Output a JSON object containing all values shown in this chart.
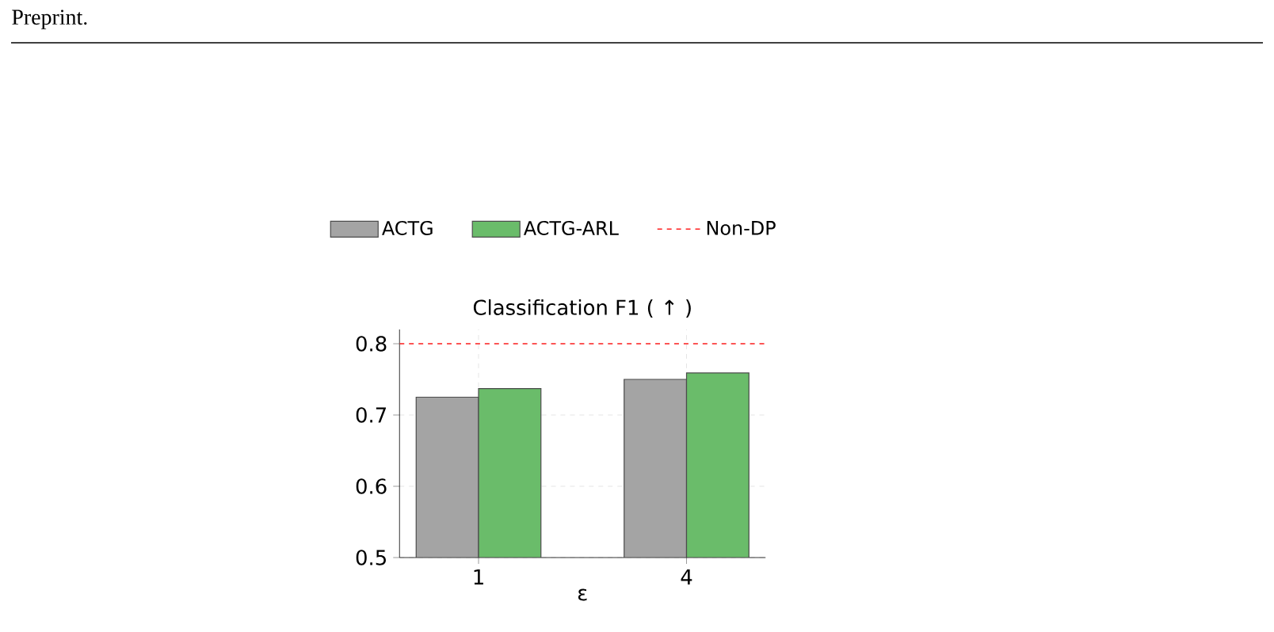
{
  "chart_data": {
    "type": "bar",
    "title": "Classification F1 ( ↑ )",
    "xlabel": "ε",
    "categories": [
      "1",
      "4"
    ],
    "series": [
      {
        "name": "ACTG",
        "color": "#a4a4a4",
        "values": [
          0.725,
          0.75
        ]
      },
      {
        "name": "ACTG-ARL",
        "color": "#6abc6a",
        "values": [
          0.737,
          0.759
        ]
      }
    ],
    "ylim": [
      0.5,
      0.82
    ],
    "yticks": [
      0.5,
      0.6,
      0.7,
      0.8
    ],
    "ref_lines": [
      {
        "axis": "y",
        "value": 0.8,
        "label": "Non-DP",
        "color": "#ff2020",
        "line_style": "dashed"
      }
    ],
    "grid": true,
    "legend": "top",
    "annotations": [
      "Preprint."
    ]
  }
}
